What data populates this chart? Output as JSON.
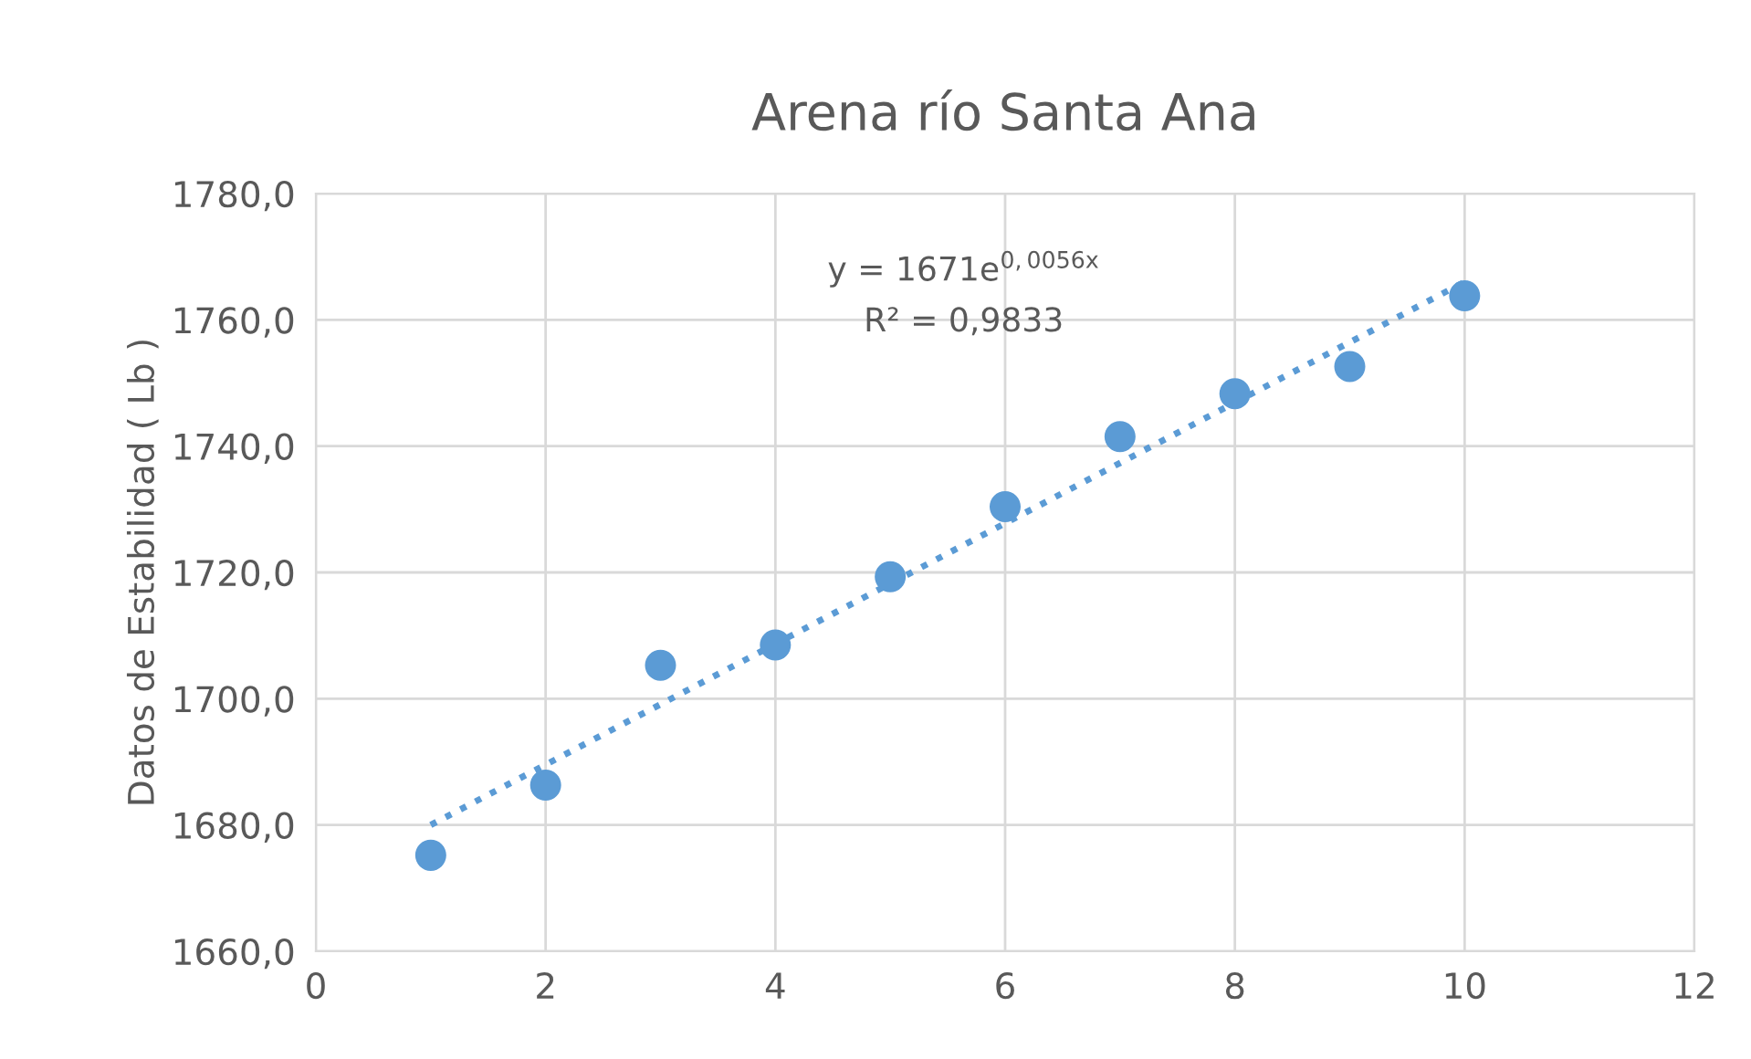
{
  "chart_data": {
    "type": "scatter",
    "title": "Arena río Santa Ana",
    "ylabel": "Datos de Estabilidad ( Lb )",
    "series": [
      {
        "color": "#5b9bd5",
        "marker": "circle",
        "x": [
          1,
          2,
          3,
          4,
          5,
          6,
          7,
          8,
          9,
          10
        ],
        "values": [
          1675.2,
          1686.3,
          1705.3,
          1708.5,
          1719.3,
          1730.4,
          1741.5,
          1748.3,
          1752.6,
          1763.8
        ]
      },
      {
        "type": "line",
        "color": "#5b9bd5",
        "line_style": "dotted",
        "x": [
          1,
          10
        ],
        "values": [
          1680,
          1766
        ]
      }
    ],
    "annotations": [
      "y = 1671e$^{0,0056x}$",
      "R² = 0,9833"
    ],
    "xlim": [
      0,
      12
    ],
    "xticks": [
      0,
      2,
      4,
      6,
      8,
      10,
      12
    ],
    "ylim": [
      1660,
      1780
    ],
    "yticks": [
      {
        "value": 1660,
        "label": "1660,0"
      },
      {
        "value": 1680,
        "label": "1680,0"
      },
      {
        "value": 1700,
        "label": "1700,0"
      },
      {
        "value": 1720,
        "label": "1720,0"
      },
      {
        "value": 1740,
        "label": "1740,0"
      },
      {
        "value": 1760,
        "label": "1760,0"
      },
      {
        "value": 1780,
        "label": "1780,0"
      }
    ],
    "grid": true
  }
}
